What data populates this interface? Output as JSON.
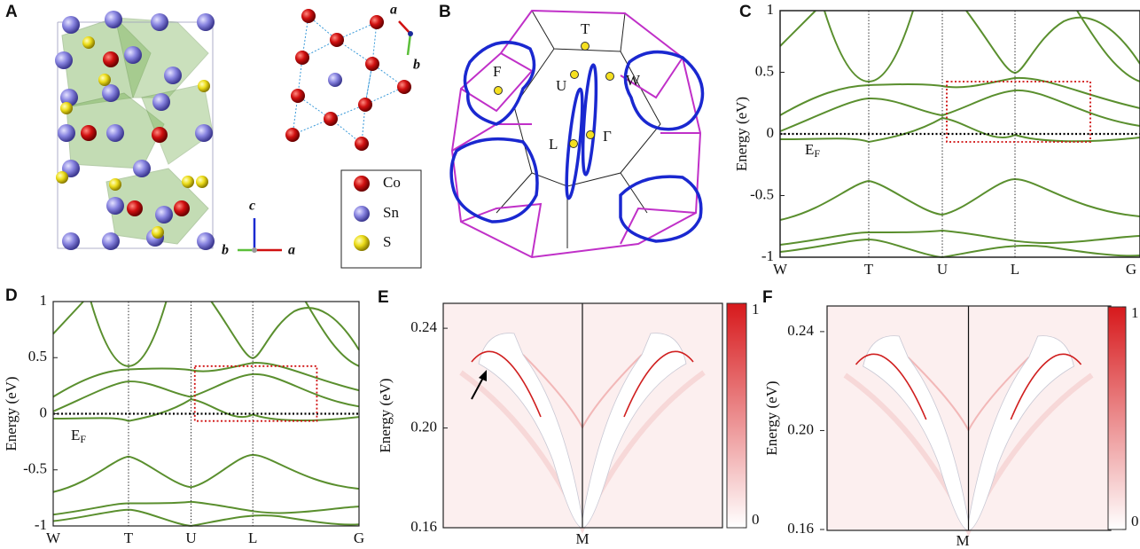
{
  "panels": [
    {
      "label": "A",
      "legend": [
        "Co",
        "Sn",
        "S"
      ],
      "axes_top": [
        "a",
        "b"
      ],
      "axes_bottom": [
        "c",
        "b",
        "a"
      ]
    },
    {
      "label": "B",
      "points": [
        "T",
        "F",
        "U",
        "W",
        "L",
        "Γ"
      ]
    },
    {
      "label": "C",
      "ylabel": "Energy (eV)",
      "ylim": [
        -1,
        1
      ],
      "yticks": [
        1,
        0.5,
        0,
        -0.5,
        -1
      ],
      "kpoints": [
        "W",
        "T",
        "U",
        "L",
        "G"
      ],
      "fermi": {
        "main": "E",
        "sub": "F"
      }
    },
    {
      "label": "D",
      "ylabel": "Energy (eV)",
      "ylim": [
        -1,
        1
      ],
      "yticks": [
        1,
        0.5,
        0,
        -0.5,
        -1
      ],
      "kpoints": [
        "W",
        "T",
        "U",
        "L",
        "G"
      ],
      "fermi": {
        "main": "E",
        "sub": "F"
      }
    },
    {
      "label": "E",
      "ylabel": "Energy (eV)",
      "ylim": [
        0.16,
        0.25
      ],
      "yticks": [
        0.24,
        {
          "value": 0.2,
          "label": "0.20"
        },
        0.16
      ],
      "xlabel": "M",
      "clim": [
        0,
        1
      ],
      "cticks": [
        1,
        0
      ]
    },
    {
      "label": "F",
      "ylabel": "Energy (eV)",
      "ylim": [
        0.16,
        0.25
      ],
      "yticks": [
        0.24,
        {
          "value": 0.2,
          "label": "0.20"
        },
        0.16
      ],
      "xlabel": "M",
      "clim": [
        0,
        1
      ],
      "cticks": [
        1,
        0
      ]
    }
  ]
}
